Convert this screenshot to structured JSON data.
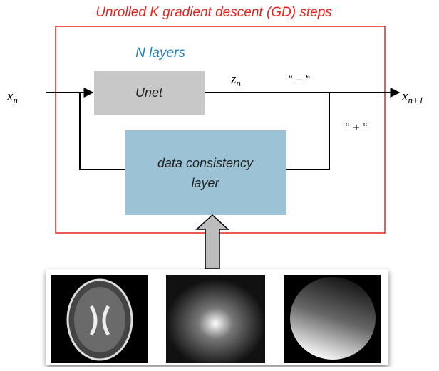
{
  "title": "Unrolled K gradient descent (GD) steps",
  "nodes": {
    "unet": {
      "label": "Unet",
      "group_label": "N layers"
    },
    "data_consistency": {
      "label_line1": "data consistency",
      "label_line2": "layer"
    }
  },
  "variables": {
    "input": {
      "base": "x",
      "sub": "n"
    },
    "intermediate": {
      "base": "z",
      "sub": "n"
    },
    "output": {
      "base": "x",
      "sub": "n+1"
    }
  },
  "signs": {
    "minus": "“ – “",
    "plus": "“ + “"
  }
}
